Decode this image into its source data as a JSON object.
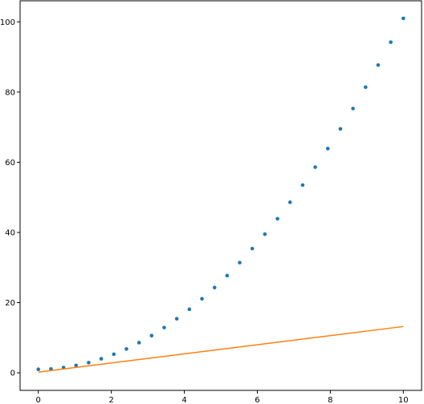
{
  "chart_data": {
    "type": "scatter",
    "xlim": [
      -0.5,
      10.5
    ],
    "ylim": [
      -5,
      106
    ],
    "x_ticks": [
      0,
      2,
      4,
      6,
      8,
      10
    ],
    "y_ticks": [
      0,
      20,
      40,
      60,
      80,
      100
    ],
    "x_tick_labels": [
      "0",
      "2",
      "4",
      "6",
      "8",
      "10"
    ],
    "y_tick_labels": [
      "0",
      "20",
      "40",
      "60",
      "80",
      "100"
    ],
    "grid": false,
    "series": [
      {
        "kind": "scatter",
        "color": "#1f77b4",
        "x": [
          0,
          0.345,
          0.69,
          1.034,
          1.379,
          1.724,
          2.069,
          2.414,
          2.759,
          3.103,
          3.448,
          3.793,
          4.138,
          4.483,
          4.828,
          5.172,
          5.517,
          5.862,
          6.207,
          6.552,
          6.897,
          7.241,
          7.586,
          7.931,
          8.276,
          8.621,
          8.966,
          9.31,
          9.655,
          10
        ],
        "y": [
          1.0,
          1.1,
          1.5,
          2.1,
          2.9,
          4.0,
          5.3,
          6.8,
          8.6,
          10.6,
          12.9,
          15.4,
          18.1,
          21.1,
          24.3,
          27.7,
          31.4,
          35.4,
          39.5,
          43.9,
          48.6,
          53.5,
          58.6,
          63.9,
          69.5,
          75.3,
          81.4,
          87.7,
          94.2,
          101.0
        ]
      },
      {
        "kind": "line",
        "color": "#ff7f0e",
        "x": [
          0,
          10
        ],
        "y": [
          0.2,
          13.2
        ]
      }
    ]
  }
}
